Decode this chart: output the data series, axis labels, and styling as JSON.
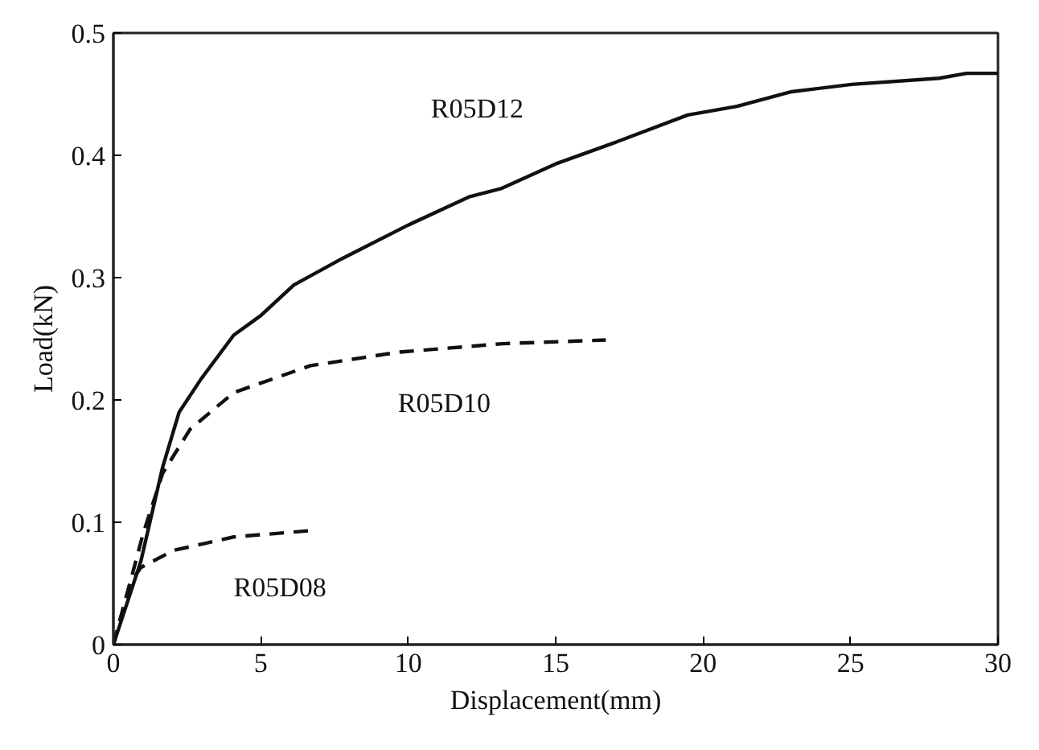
{
  "chart_data": {
    "type": "line",
    "xlabel": "Displacement(mm)",
    "ylabel": "Load(kN)",
    "xlim": [
      0,
      30
    ],
    "ylim": [
      0,
      0.5
    ],
    "xticks": [
      0,
      5,
      10,
      15,
      20,
      25,
      30
    ],
    "yticks": [
      0,
      0.1,
      0.2,
      0.3,
      0.4,
      0.5
    ],
    "grid": false,
    "series": [
      {
        "name": "R05D12",
        "color": "#111111",
        "line_style": "solid",
        "x": [
          0,
          0.93,
          1.67,
          2.23,
          2.97,
          4.08,
          5.0,
          6.12,
          7.79,
          10.0,
          12.06,
          13.17,
          15.0,
          17.07,
          19.48,
          21.15,
          23.0,
          25.04,
          28.0,
          28.94,
          30.0
        ],
        "values": [
          0,
          0.068,
          0.145,
          0.19,
          0.217,
          0.253,
          0.269,
          0.294,
          0.316,
          0.343,
          0.366,
          0.373,
          0.393,
          0.411,
          0.433,
          0.44,
          0.452,
          0.458,
          0.463,
          0.467,
          0.467
        ]
      },
      {
        "name": "R05D10",
        "color": "#111111",
        "line_style": "dashed",
        "x": [
          0,
          0.56,
          1.0,
          1.67,
          2.6,
          4.08,
          6.68,
          9.65,
          13.2,
          16.7
        ],
        "values": [
          0,
          0.05,
          0.09,
          0.14,
          0.176,
          0.206,
          0.228,
          0.239,
          0.246,
          0.249
        ]
      },
      {
        "name": "R05D08",
        "color": "#111111",
        "line_style": "dashed",
        "x": [
          0,
          0.56,
          0.93,
          2.04,
          4.08,
          6.6
        ],
        "values": [
          0,
          0.05,
          0.063,
          0.077,
          0.088,
          0.093
        ]
      }
    ]
  }
}
